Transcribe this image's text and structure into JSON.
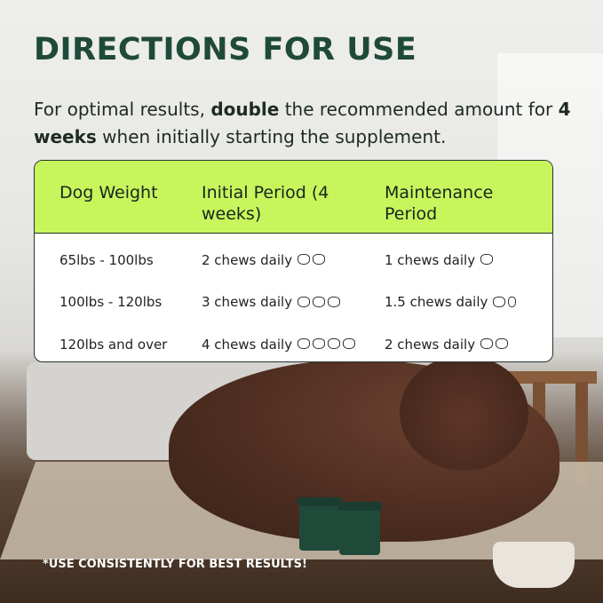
{
  "title": "DIRECTIONS FOR USE",
  "intro": {
    "part1": "For optimal results, ",
    "bold1": "double",
    "part2": " the recommended amount for ",
    "bold2": "4 weeks",
    "part3": " when initially starting the supplement."
  },
  "table": {
    "headers": [
      "Dog Weight",
      "Initial Period (4 weeks)",
      "Maintenance Period"
    ],
    "rows": [
      {
        "weight": "65lbs - 100lbs",
        "initial": "2 chews daily",
        "initial_chews": 2,
        "maintenance": "1 chews daily",
        "maintenance_chews": 1
      },
      {
        "weight": "100lbs - 120lbs",
        "initial": "3 chews daily",
        "initial_chews": 3,
        "maintenance": "1.5 chews daily",
        "maintenance_chews": 1.5
      },
      {
        "weight": "120lbs and over",
        "initial": "4 chews daily",
        "initial_chews": 4,
        "maintenance": "2 chews daily",
        "maintenance_chews": 2
      }
    ],
    "chew_icon": "chew-icon"
  },
  "footer": "*USE CONSISTENTLY FOR BEST RESULTS!",
  "colors": {
    "title": "#1f4a3a",
    "header_bg": "#c7f55c"
  }
}
